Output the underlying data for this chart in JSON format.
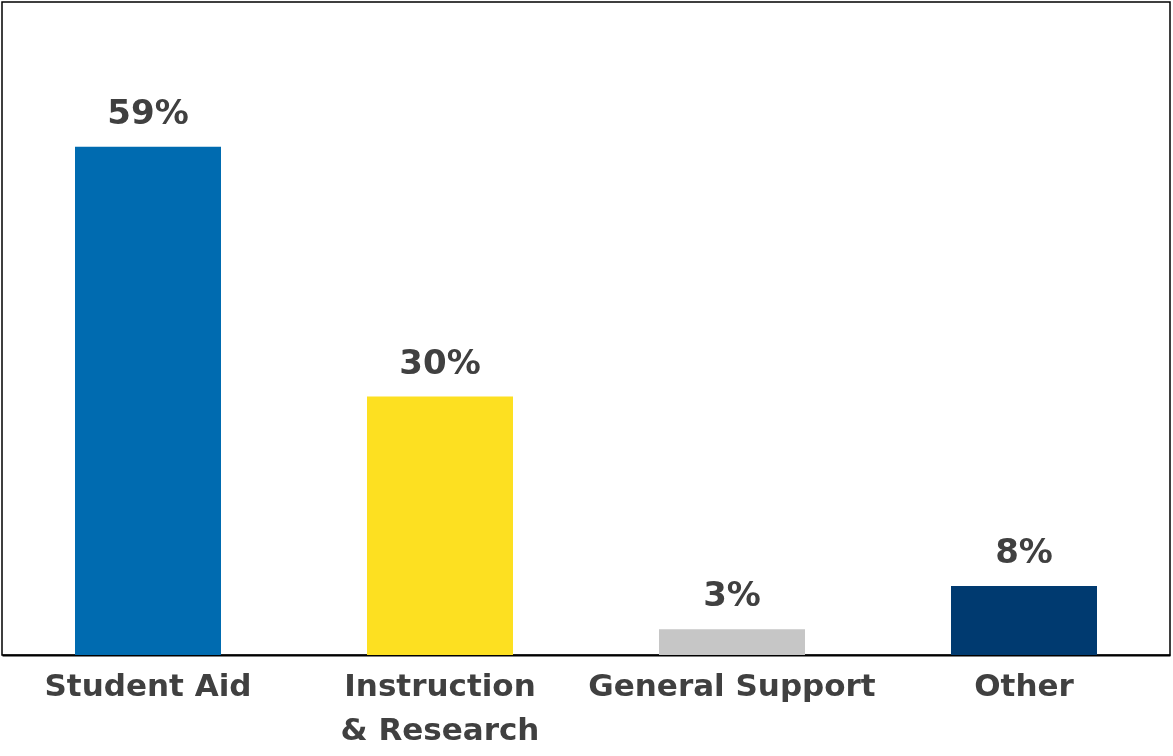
{
  "chart_data": {
    "type": "bar",
    "categories": [
      "Student Aid",
      "Instruction & Research",
      "General Support",
      "Other"
    ],
    "values": [
      59,
      30,
      3,
      8
    ],
    "colors": [
      "#006bb0",
      "#fde021",
      "#c6c6c6",
      "#003a70"
    ],
    "value_labels": [
      "59%",
      "30%",
      "3%",
      "8%"
    ]
  }
}
